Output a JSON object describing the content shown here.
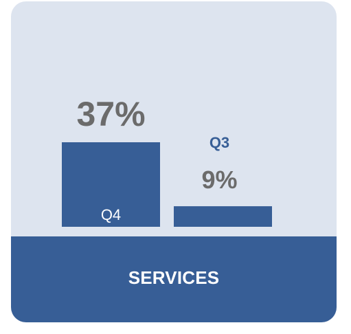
{
  "chart_data": {
    "type": "bar",
    "categories": [
      "Q4",
      "Q3"
    ],
    "values": [
      37,
      9
    ],
    "value_labels": [
      "37%",
      "9%"
    ],
    "unit": "%",
    "title": "",
    "xlabel": "",
    "ylabel": "",
    "ylim": [
      0,
      37
    ],
    "grid": false,
    "legend": "none"
  },
  "footer": {
    "label": "SERVICES"
  },
  "colors": {
    "card_background": "#dde4ef",
    "bar": "#375e96",
    "value_text": "#6b6b6b",
    "footer_background": "#375e96",
    "footer_text": "#ffffff"
  }
}
